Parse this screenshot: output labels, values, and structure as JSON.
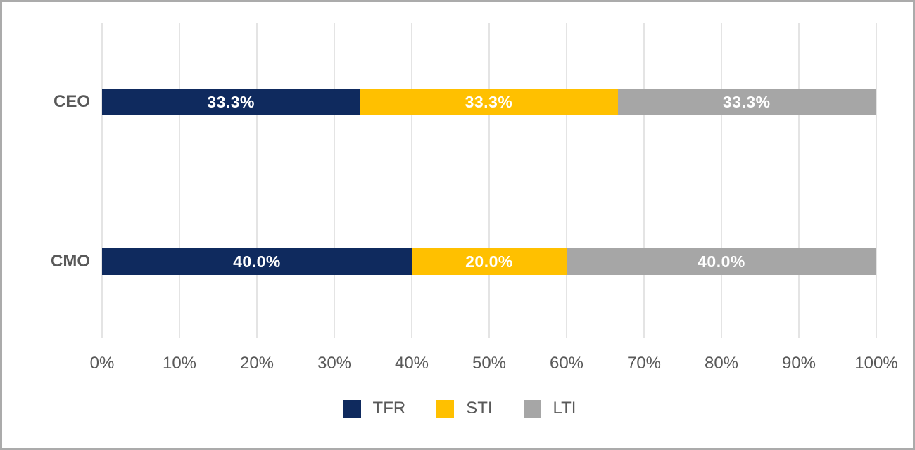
{
  "chart_data": {
    "type": "bar",
    "orientation": "horizontal",
    "stacked": true,
    "title": "",
    "categories": [
      "CEO",
      "CMO"
    ],
    "series": [
      {
        "name": "TFR",
        "color": "#0F2A5E",
        "values": [
          33.3,
          40.0
        ]
      },
      {
        "name": "STI",
        "color": "#FFC000",
        "values": [
          33.3,
          20.0
        ]
      },
      {
        "name": "LTI",
        "color": "#A6A6A6",
        "values": [
          33.3,
          40.0
        ]
      }
    ],
    "data_labels": [
      [
        "33.3%",
        "33.3%",
        "33.3%"
      ],
      [
        "40.0%",
        "20.0%",
        "40.0%"
      ]
    ],
    "x_ticks": [
      "0%",
      "10%",
      "20%",
      "30%",
      "40%",
      "50%",
      "60%",
      "70%",
      "80%",
      "90%",
      "100%"
    ],
    "xlim": [
      0,
      100
    ],
    "grid": "vertical",
    "legend": {
      "position": "bottom",
      "entries": [
        "TFR",
        "STI",
        "LTI"
      ]
    },
    "colors": {
      "data_label_text": "#FFFFFF",
      "axis_text": "#595959",
      "gridline": "#E4E4E4",
      "background": "#FFFFFF",
      "frame_border": "#ABABAB"
    }
  }
}
